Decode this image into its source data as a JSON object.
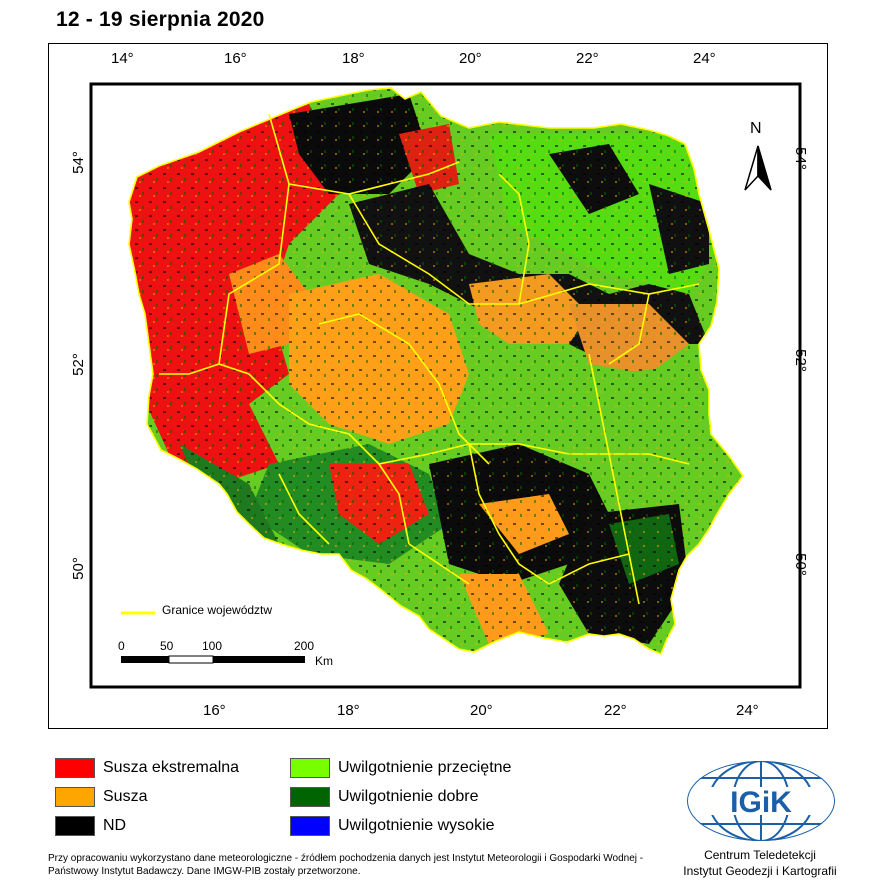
{
  "title": "12 - 19 sierpnia 2020",
  "map": {
    "top_longitudes": [
      "14°",
      "16°",
      "18°",
      "20°",
      "22°",
      "24°"
    ],
    "bottom_longitudes": [
      "16°",
      "18°",
      "20°",
      "22°",
      "24°"
    ],
    "left_latitudes": [
      "54°",
      "52°",
      "50°"
    ],
    "right_latitudes": [
      "54°",
      "52°",
      "50°"
    ],
    "north_label": "N",
    "boundary_legend": "Granice województw",
    "scale": {
      "ticks": [
        "0",
        "50",
        "100",
        "200"
      ],
      "unit": "Km"
    }
  },
  "legend": [
    {
      "label": "Susza ekstremalna",
      "color": "#ff0000"
    },
    {
      "label": "Susza",
      "color": "#ffa500"
    },
    {
      "label": "ND",
      "color": "#000000"
    },
    {
      "label": "Uwilgotnienie przeciętne",
      "color": "#77ff00"
    },
    {
      "label": "Uwilgotnienie dobre",
      "color": "#006400"
    },
    {
      "label": "Uwilgotnienie wysokie",
      "color": "#0000ff"
    }
  ],
  "source_text": "Przy opracowaniu wykorzystano dane meteorologiczne - źródłem pochodzenia danych jest Instytut Meteorologii i Gospodarki Wodnej - Państwowy Instytut Badawczy. Dane IMGW-PIB zostały przetworzone.",
  "logo": {
    "text": "IGiK",
    "caption_line1": "Centrum Teledetekcji",
    "caption_line2": "Instytut Geodezji i Kartografii"
  },
  "colors": {
    "boundary": "#ffff00",
    "logo_blue": "#1a5fa8"
  }
}
